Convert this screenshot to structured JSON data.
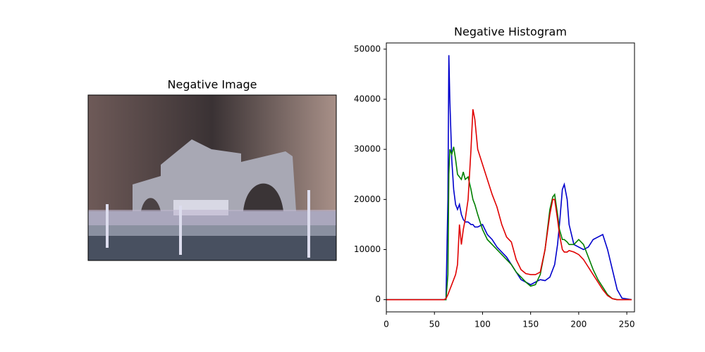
{
  "chart_data": [
    {
      "type": "image",
      "title": "Negative Image"
    },
    {
      "type": "line",
      "title": "Negative Histogram",
      "x": [
        0,
        55,
        60,
        62,
        64,
        65,
        66,
        68,
        70,
        72,
        74,
        76,
        78,
        80,
        82,
        85,
        88,
        90,
        92,
        95,
        100,
        105,
        110,
        115,
        120,
        125,
        130,
        135,
        140,
        145,
        150,
        155,
        160,
        165,
        170,
        173,
        175,
        178,
        180,
        183,
        185,
        188,
        190,
        195,
        200,
        205,
        210,
        215,
        220,
        225,
        230,
        235,
        240,
        245,
        255
      ],
      "series": [
        {
          "color": "#0000cc",
          "values": [
            0,
            0,
            0,
            0,
            20000,
            48800,
            40000,
            28000,
            22000,
            19000,
            18000,
            19000,
            17000,
            16000,
            15500,
            15500,
            15000,
            15000,
            14500,
            14500,
            15000,
            13000,
            12000,
            10500,
            9500,
            8500,
            7000,
            5500,
            4000,
            3500,
            3000,
            3500,
            4000,
            3800,
            4500,
            6000,
            7000,
            11000,
            15000,
            22000,
            23000,
            20000,
            15000,
            11000,
            10500,
            10000,
            10500,
            12000,
            12500,
            13000,
            10000,
            6000,
            2000,
            300,
            0
          ]
        },
        {
          "color": "#007f00",
          "values": [
            0,
            0,
            0,
            0,
            5000,
            25000,
            30000,
            29000,
            30500,
            28000,
            25000,
            24500,
            24000,
            25500,
            24000,
            24500,
            22000,
            20000,
            19000,
            17000,
            14000,
            12000,
            11000,
            10000,
            9000,
            8000,
            7000,
            5500,
            4500,
            3500,
            2700,
            3000,
            5000,
            10000,
            18000,
            20500,
            21000,
            17000,
            14000,
            12000,
            12000,
            11500,
            11000,
            11000,
            12000,
            11000,
            8500,
            6000,
            4000,
            2500,
            1000,
            200,
            0,
            0,
            0
          ]
        },
        {
          "color": "#e00000",
          "values": [
            0,
            0,
            0,
            200,
            1000,
            1500,
            2000,
            3000,
            4000,
            5000,
            7000,
            15000,
            11000,
            14000,
            16000,
            20000,
            30000,
            38000,
            36000,
            30000,
            27000,
            24000,
            21000,
            18500,
            15000,
            12500,
            11500,
            8000,
            6000,
            5200,
            5000,
            5000,
            5500,
            10000,
            17000,
            20000,
            20000,
            16000,
            13000,
            10000,
            9500,
            9500,
            9800,
            9500,
            9000,
            8000,
            6500,
            5000,
            3500,
            2000,
            800,
            200,
            0,
            0,
            0
          ]
        }
      ],
      "xlim": [
        0,
        258
      ],
      "xticks": [
        0,
        50,
        100,
        150,
        200,
        250
      ],
      "ylim": [
        -2440,
        51240
      ],
      "yticks": [
        0,
        10000,
        20000,
        30000,
        40000,
        50000
      ]
    }
  ]
}
